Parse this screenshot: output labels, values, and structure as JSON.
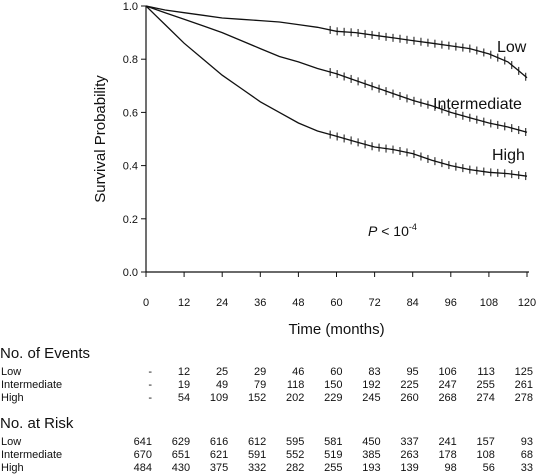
{
  "chart_data": {
    "type": "line",
    "title": "",
    "xlabel": "Time (months)",
    "ylabel": "Survival Probability",
    "xlim": [
      0,
      120
    ],
    "ylim": [
      0,
      1.0
    ],
    "x_ticks": [
      0,
      12,
      24,
      36,
      48,
      60,
      72,
      84,
      96,
      108,
      120
    ],
    "x_tick_labels": [
      "0",
      "12",
      "24",
      "36",
      "48",
      "60",
      "72",
      "84",
      "96",
      "108",
      "120"
    ],
    "y_ticks": [
      0,
      0.2,
      0.4,
      0.6,
      0.8,
      1.0
    ],
    "y_tick_labels": [
      "0.0",
      "0.2",
      "0.4",
      "0.6",
      "0.8",
      "1.0"
    ],
    "grid": false,
    "annotation": {
      "text": "P",
      "op": " < 10",
      "exp": "-4"
    },
    "series": [
      {
        "name": "Low",
        "color": "#111111",
        "x": [
          0,
          6,
          12,
          18,
          24,
          30,
          36,
          42,
          48,
          54,
          60,
          66,
          72,
          78,
          84,
          90,
          96,
          102,
          108,
          114,
          117,
          120
        ],
        "y": [
          1.0,
          0.985,
          0.975,
          0.965,
          0.955,
          0.95,
          0.945,
          0.94,
          0.93,
          0.92,
          0.905,
          0.9,
          0.89,
          0.88,
          0.87,
          0.86,
          0.85,
          0.84,
          0.82,
          0.79,
          0.76,
          0.73
        ]
      },
      {
        "name": "Intermediate",
        "color": "#111111",
        "x": [
          0,
          6,
          12,
          18,
          24,
          30,
          36,
          42,
          48,
          54,
          60,
          66,
          72,
          78,
          84,
          90,
          96,
          102,
          108,
          114,
          120
        ],
        "y": [
          1.0,
          0.975,
          0.95,
          0.925,
          0.9,
          0.87,
          0.84,
          0.81,
          0.79,
          0.765,
          0.745,
          0.72,
          0.695,
          0.67,
          0.645,
          0.625,
          0.6,
          0.58,
          0.56,
          0.545,
          0.525
        ]
      },
      {
        "name": "High",
        "color": "#111111",
        "x": [
          0,
          3,
          6,
          12,
          18,
          24,
          30,
          36,
          42,
          48,
          54,
          60,
          66,
          72,
          78,
          84,
          90,
          96,
          102,
          108,
          114,
          120
        ],
        "y": [
          1.0,
          0.965,
          0.93,
          0.86,
          0.8,
          0.74,
          0.69,
          0.64,
          0.6,
          0.56,
          0.53,
          0.51,
          0.49,
          0.47,
          0.46,
          0.445,
          0.42,
          0.4,
          0.385,
          0.375,
          0.37,
          0.36
        ]
      }
    ]
  },
  "events_table": {
    "title": "No. of Events",
    "rows": [
      {
        "label": "Low",
        "values": [
          "-",
          "12",
          "25",
          "29",
          "46",
          "60",
          "83",
          "95",
          "106",
          "113",
          "125"
        ]
      },
      {
        "label": "Intermediate",
        "values": [
          "-",
          "19",
          "49",
          "79",
          "118",
          "150",
          "192",
          "225",
          "247",
          "255",
          "261"
        ]
      },
      {
        "label": "High",
        "values": [
          "-",
          "54",
          "109",
          "152",
          "202",
          "229",
          "245",
          "260",
          "268",
          "274",
          "278"
        ]
      }
    ]
  },
  "risk_table": {
    "title": "No. at Risk",
    "rows": [
      {
        "label": "Low",
        "values": [
          "641",
          "629",
          "616",
          "612",
          "595",
          "581",
          "450",
          "337",
          "241",
          "157",
          "93"
        ]
      },
      {
        "label": "Intermediate",
        "values": [
          "670",
          "651",
          "621",
          "591",
          "552",
          "519",
          "385",
          "263",
          "178",
          "108",
          "68"
        ]
      },
      {
        "label": "High",
        "values": [
          "484",
          "430",
          "375",
          "332",
          "282",
          "255",
          "193",
          "139",
          "98",
          "56",
          "33"
        ]
      }
    ]
  }
}
